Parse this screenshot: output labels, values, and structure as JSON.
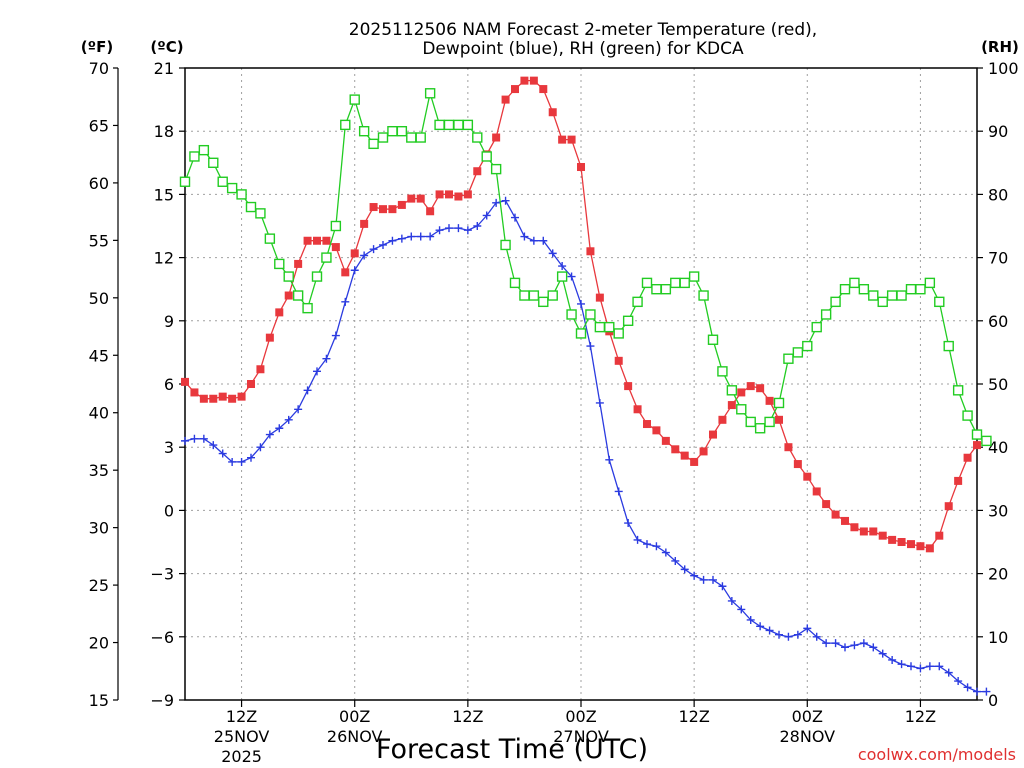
{
  "title_line1": "2025112506 NAM Forecast 2-meter Temperature (red),",
  "title_line2": "Dewpoint (blue), RH (green) for KDCA",
  "units": {
    "fahrenheit": "(ºF)",
    "celsius": "(ºC)",
    "rh": "(RH)"
  },
  "xlabel": "Forecast Time (UTC)",
  "credit": "coolwx.com/models",
  "x_ticks": [
    {
      "hour": 6,
      "label": "12Z",
      "date": "25NOV",
      "year": "2025"
    },
    {
      "hour": 18,
      "label": "00Z",
      "date": "26NOV",
      "year": ""
    },
    {
      "hour": 30,
      "label": "12Z",
      "date": "",
      "year": ""
    },
    {
      "hour": 42,
      "label": "00Z",
      "date": "27NOV",
      "year": ""
    },
    {
      "hour": 54,
      "label": "12Z",
      "date": "",
      "year": ""
    },
    {
      "hour": 66,
      "label": "00Z",
      "date": "28NOV",
      "year": ""
    },
    {
      "hour": 78,
      "label": "12Z",
      "date": "",
      "year": ""
    }
  ],
  "colors": {
    "temperature": "#e8383d",
    "dewpoint": "#2b3be0",
    "rh": "#22cc22",
    "grid": "#a0a0a0"
  },
  "chart_data": {
    "type": "line",
    "x_unit": "forecast hour from 2025112506",
    "xlim": [
      0,
      84
    ],
    "ylim_celsius": [
      -9,
      21
    ],
    "ylim_fahrenheit": [
      15,
      70
    ],
    "ylim_rh": [
      0,
      100
    ],
    "y_ticks_celsius": [
      -9,
      -6,
      -3,
      0,
      3,
      6,
      9,
      12,
      15,
      18,
      21
    ],
    "y_ticks_fahrenheit": [
      15,
      20,
      25,
      30,
      35,
      40,
      45,
      50,
      55,
      60,
      65,
      70
    ],
    "y_ticks_rh": [
      0,
      10,
      20,
      30,
      40,
      50,
      60,
      70,
      80,
      90,
      100
    ],
    "grid": true,
    "series": [
      {
        "key": "temperature",
        "axis": "celsius",
        "marker": "filled-square",
        "values": [
          6.1,
          5.6,
          5.3,
          5.3,
          5.4,
          5.3,
          5.4,
          6.0,
          6.7,
          8.2,
          9.4,
          10.2,
          11.7,
          12.8,
          12.8,
          12.8,
          12.5,
          11.3,
          12.2,
          13.6,
          14.4,
          14.3,
          14.3,
          14.5,
          14.8,
          14.8,
          14.2,
          15.0,
          15.0,
          14.9,
          15.0,
          16.1,
          16.9,
          17.7,
          19.5,
          20.0,
          20.4,
          20.4,
          20.0,
          18.9,
          17.6,
          17.6,
          16.3,
          12.3,
          10.1,
          8.5,
          7.1,
          5.9,
          4.8,
          4.1,
          3.8,
          3.3,
          2.9,
          2.6,
          2.3,
          2.8,
          3.6,
          4.3,
          5.0,
          5.6,
          5.9,
          5.8,
          5.2,
          4.3,
          3.0,
          2.2,
          1.6,
          0.9,
          0.3,
          -0.2,
          -0.5,
          -0.8,
          -1.0,
          -1.0,
          -1.2,
          -1.4,
          -1.5,
          -1.6,
          -1.7,
          -1.8,
          -1.2,
          0.2,
          1.4,
          2.5,
          3.1,
          3.3
        ]
      },
      {
        "key": "dewpoint",
        "axis": "celsius",
        "marker": "plus",
        "values": [
          3.3,
          3.4,
          3.4,
          3.1,
          2.7,
          2.3,
          2.3,
          2.5,
          3.0,
          3.6,
          3.9,
          4.3,
          4.8,
          5.7,
          6.6,
          7.2,
          8.3,
          9.9,
          11.4,
          12.1,
          12.4,
          12.6,
          12.8,
          12.9,
          13.0,
          13.0,
          13.0,
          13.3,
          13.4,
          13.4,
          13.3,
          13.5,
          14.0,
          14.6,
          14.7,
          13.9,
          13.0,
          12.8,
          12.8,
          12.2,
          11.6,
          11.1,
          9.8,
          7.8,
          5.1,
          2.4,
          0.9,
          -0.6,
          -1.4,
          -1.6,
          -1.7,
          -2.0,
          -2.4,
          -2.8,
          -3.1,
          -3.3,
          -3.3,
          -3.6,
          -4.3,
          -4.7,
          -5.2,
          -5.5,
          -5.7,
          -5.9,
          -6.0,
          -5.9,
          -5.6,
          -6.0,
          -6.3,
          -6.3,
          -6.5,
          -6.4,
          -6.3,
          -6.5,
          -6.8,
          -7.1,
          -7.3,
          -7.4,
          -7.5,
          -7.4,
          -7.4,
          -7.7,
          -8.1,
          -8.4,
          -8.6,
          -8.6
        ]
      },
      {
        "key": "rh",
        "axis": "rh",
        "marker": "open-square",
        "values": [
          82,
          86,
          87,
          85,
          82,
          81,
          80,
          78,
          77,
          73,
          69,
          67,
          64,
          62,
          67,
          70,
          75,
          91,
          95,
          90,
          88,
          89,
          90,
          90,
          89,
          89,
          96,
          91,
          91,
          91,
          91,
          89,
          86,
          84,
          72,
          66,
          64,
          64,
          63,
          64,
          67,
          61,
          58,
          61,
          59,
          59,
          58,
          60,
          63,
          66,
          65,
          65,
          66,
          66,
          67,
          64,
          57,
          52,
          49,
          46,
          44,
          43,
          44,
          47,
          54,
          55,
          56,
          59,
          61,
          63,
          65,
          66,
          65,
          64,
          63,
          64,
          64,
          65,
          65,
          66,
          63,
          56,
          49,
          45,
          42,
          41
        ]
      }
    ]
  }
}
